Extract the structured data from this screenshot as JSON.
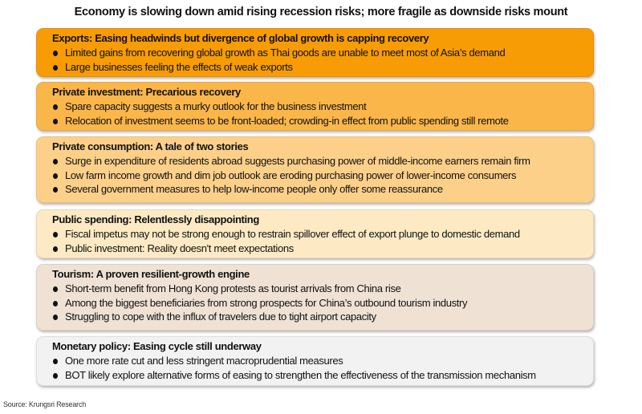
{
  "title": "Economy is slowing down amid rising recession risks; more fragile as downside risks mount",
  "boxes": [
    {
      "heading": "Exports: Easing headwinds but divergence of global growth is capping recovery",
      "color": "#f89c06",
      "bullets": [
        "Limited gains from recovering global growth as Thai goods are unable to meet most of Asia’s demand",
        "Large businesses feeling the effects of weak exports"
      ]
    },
    {
      "heading": "Private investment: Precarious recovery",
      "color": "#fbb64a",
      "bullets": [
        "Spare capacity suggests a murky outlook for the business investment",
        "Relocation of investment seems to be front-loaded; crowding-in effect from public spending still remote"
      ]
    },
    {
      "heading": "Private consumption: A tale of two stories",
      "color": "#fdd08a",
      "bullets": [
        "Surge in expenditure of residents abroad suggests purchasing power of middle-income earners remain firm",
        "Low farm income growth and dim job outlook are eroding purchasing power of lower-income consumers",
        "Several government measures to help low-income people only offer some reassurance"
      ]
    },
    {
      "heading": "Public spending: Relentlessly disappointing",
      "color": "#fdeac4",
      "bullets": [
        "Fiscal impetus may not be strong enough to restrain spillover effect of export plunge to domestic demand",
        "Public investment: Reality doesn't meet expectations"
      ]
    },
    {
      "heading": "Tourism: A proven resilient-growth engine",
      "color": "#efe2d4",
      "bullets": [
        "Short-term benefit from Hong Kong protests as tourist arrivals from China rise",
        "Among the biggest beneficiaries from strong prospects for China’s outbound tourism industry",
        "Struggling to cope with the influx of travelers due to tight airport capacity"
      ]
    },
    {
      "heading": "Monetary policy: Easing cycle still underway",
      "color": "#f2f2f2",
      "bullets": [
        "One more rate cut and less stringent macroprudential measures",
        "BOT likely explore alternative forms of easing to strengthen the effectiveness of the transmission mechanism"
      ]
    }
  ],
  "source": "Source: Krungsri Research"
}
